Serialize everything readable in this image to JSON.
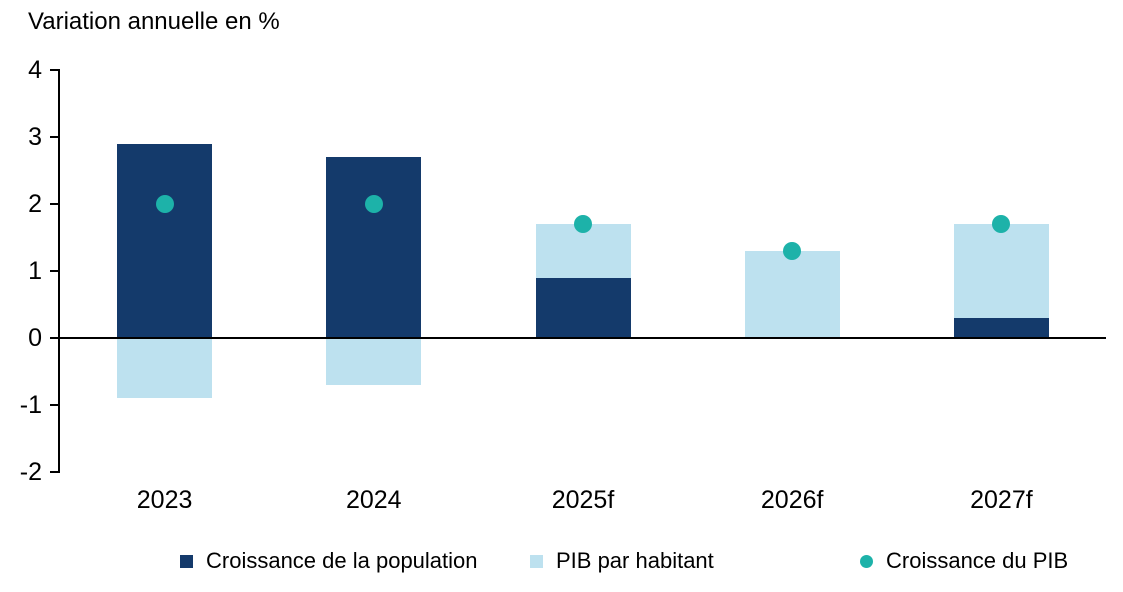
{
  "title": "Variation annuelle en %",
  "colors": {
    "population": "#143A6B",
    "pib_par_habitant": "#BDE1EF",
    "croissance_pib": "#1DB2A9",
    "axis": "#000000",
    "text": "#000000",
    "background": "#FFFFFF"
  },
  "chart_data": {
    "type": "bar",
    "stacked": true,
    "title": "Variation annuelle en %",
    "categories": [
      "2023",
      "2024",
      "2025f",
      "2026f",
      "2027f"
    ],
    "series": [
      {
        "name": "Croissance de la population",
        "type": "bar",
        "color_key": "population",
        "values": [
          2.9,
          2.7,
          0.9,
          0,
          0.3
        ]
      },
      {
        "name": "PIB par habitant",
        "type": "bar",
        "color_key": "pib_par_habitant",
        "values": [
          -0.9,
          -0.7,
          0.8,
          1.3,
          1.4
        ]
      },
      {
        "name": "Croissance du PIB",
        "type": "point",
        "color_key": "croissance_pib",
        "values": [
          2.0,
          2.0,
          1.7,
          1.3,
          1.7
        ]
      }
    ],
    "ylim": [
      -2,
      4
    ],
    "yticks": [
      4,
      3,
      2,
      1,
      0,
      -1,
      -2
    ],
    "grid": false,
    "legend_position": "bottom"
  },
  "legend": {
    "items": [
      {
        "label": "Croissance de la population",
        "swatch": "square",
        "color_key": "population"
      },
      {
        "label": "PIB par habitant",
        "swatch": "square",
        "color_key": "pib_par_habitant"
      },
      {
        "label": "Croissance du PIB",
        "swatch": "circle",
        "color_key": "croissance_pib"
      }
    ]
  }
}
